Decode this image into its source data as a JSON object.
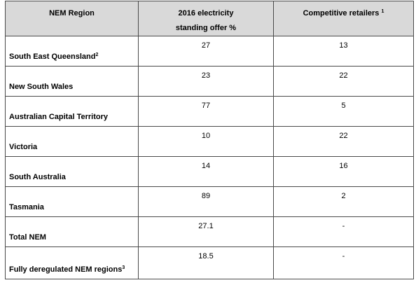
{
  "table": {
    "headers": {
      "region": "NEM Region",
      "standing_offer_line1": "2016 electricity",
      "standing_offer_line2": "standing offer %",
      "retailers": "Competitive retailers",
      "retailers_note": "1"
    },
    "rows": [
      {
        "region": "South East Queensland",
        "note": "2",
        "standing_offer": "27",
        "retailers": "13"
      },
      {
        "region": "New South Wales",
        "note": "",
        "standing_offer": "23",
        "retailers": "22"
      },
      {
        "region": "Australian Capital Territory",
        "note": "",
        "standing_offer": "77",
        "retailers": "5"
      },
      {
        "region": "Victoria",
        "note": "",
        "standing_offer": "10",
        "retailers": "22"
      },
      {
        "region": "South Australia",
        "note": "",
        "standing_offer": "14",
        "retailers": "16"
      },
      {
        "region": "Tasmania",
        "note": "",
        "standing_offer": "89",
        "retailers": "2"
      },
      {
        "region": "Total NEM",
        "note": "",
        "standing_offer": "27.1",
        "retailers": "-"
      },
      {
        "region": "Fully deregulated NEM regions",
        "note": "3",
        "standing_offer": "18.5",
        "retailers": "-"
      }
    ]
  }
}
